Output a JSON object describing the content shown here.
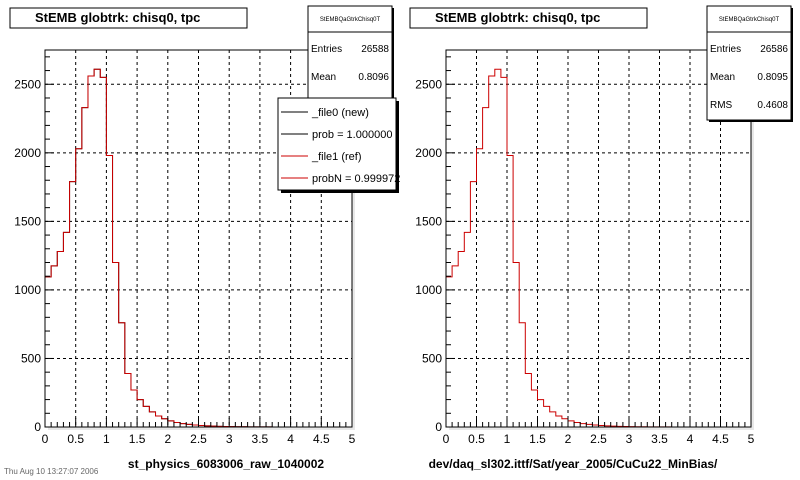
{
  "footer_text": "Thu Aug 10 13:27:07 2006",
  "chart_data": [
    {
      "type": "histogram",
      "title": "StEMB globtrk: chisq0, tpc",
      "xlabel": "st_physics_6083006_raw_1040002",
      "ylabel": "",
      "xlim": [
        0,
        5
      ],
      "ylim": [
        0,
        2750
      ],
      "xticks": [
        "0",
        "0.5",
        "1",
        "1.5",
        "2",
        "2.5",
        "3",
        "3.5",
        "4",
        "4.5",
        "5"
      ],
      "yticks": [
        "0",
        "500",
        "1000",
        "1500",
        "2000",
        "2500"
      ],
      "grid": true,
      "bin_edges_step": 0.1,
      "series": [
        {
          "name": "_file0 (new)",
          "color": "#000000",
          "values": [
            1095,
            1175,
            1280,
            1420,
            1790,
            2030,
            2330,
            2560,
            2610,
            2550,
            1980,
            1200,
            760,
            390,
            270,
            200,
            150,
            110,
            80,
            60,
            45,
            33,
            25,
            19,
            15,
            11,
            8,
            6,
            5,
            4,
            3,
            2,
            2,
            1,
            1,
            1,
            1,
            0,
            0,
            0,
            0,
            0,
            0,
            0,
            0,
            0,
            0,
            0,
            0,
            0
          ]
        },
        {
          "name": "_file1 (ref)",
          "color": "#cc0000",
          "values": [
            1095,
            1175,
            1280,
            1420,
            1790,
            2030,
            2330,
            2560,
            2610,
            2550,
            1980,
            1200,
            760,
            390,
            270,
            200,
            150,
            110,
            80,
            60,
            45,
            33,
            25,
            19,
            15,
            11,
            8,
            6,
            5,
            4,
            3,
            2,
            2,
            1,
            1,
            1,
            1,
            0,
            0,
            0,
            0,
            0,
            0,
            0,
            0,
            0,
            0,
            0,
            0,
            0
          ]
        }
      ],
      "stats": {
        "title": "StEMBQaGtrkChisq0T",
        "rows": [
          {
            "label": "Entries",
            "value": "26588"
          },
          {
            "label": "Mean",
            "value": "0.8096"
          }
        ]
      },
      "legend": {
        "placement": "top-right",
        "entries": [
          {
            "label": "_file0 (new)",
            "color": "#000000"
          },
          {
            "label": "prob = 1.000000",
            "color": "#000000"
          },
          {
            "label": "_file1 (ref)",
            "color": "#cc0000"
          },
          {
            "label": "probN = 0.999972",
            "color": "#cc0000"
          }
        ]
      }
    },
    {
      "type": "histogram",
      "title": "StEMB globtrk: chisq0, tpc",
      "xlabel": "dev/daq_sl302.ittf/Sat/year_2005/CuCu22_MinBias/",
      "ylabel": "",
      "xlim": [
        0,
        5
      ],
      "ylim": [
        0,
        2750
      ],
      "xticks": [
        "0",
        "0.5",
        "1",
        "1.5",
        "2",
        "2.5",
        "3",
        "3.5",
        "4",
        "4.5",
        "5"
      ],
      "yticks": [
        "0",
        "500",
        "1000",
        "1500",
        "2000",
        "2500"
      ],
      "grid": true,
      "bin_edges_step": 0.1,
      "series": [
        {
          "name": "",
          "color": "#cc0000",
          "values": [
            1095,
            1175,
            1280,
            1420,
            1790,
            2030,
            2330,
            2560,
            2610,
            2550,
            1980,
            1200,
            760,
            390,
            270,
            200,
            150,
            110,
            80,
            60,
            45,
            33,
            25,
            19,
            15,
            11,
            8,
            6,
            5,
            4,
            3,
            2,
            2,
            1,
            1,
            1,
            1,
            0,
            0,
            0,
            0,
            0,
            0,
            0,
            0,
            0,
            0,
            0,
            0,
            0
          ]
        }
      ],
      "stats": {
        "title": "StEMBQaGtrkChisq0T",
        "rows": [
          {
            "label": "Entries",
            "value": "26586"
          },
          {
            "label": "Mean",
            "value": "0.8095"
          },
          {
            "label": "RMS",
            "value": "0.4608"
          }
        ]
      }
    }
  ]
}
